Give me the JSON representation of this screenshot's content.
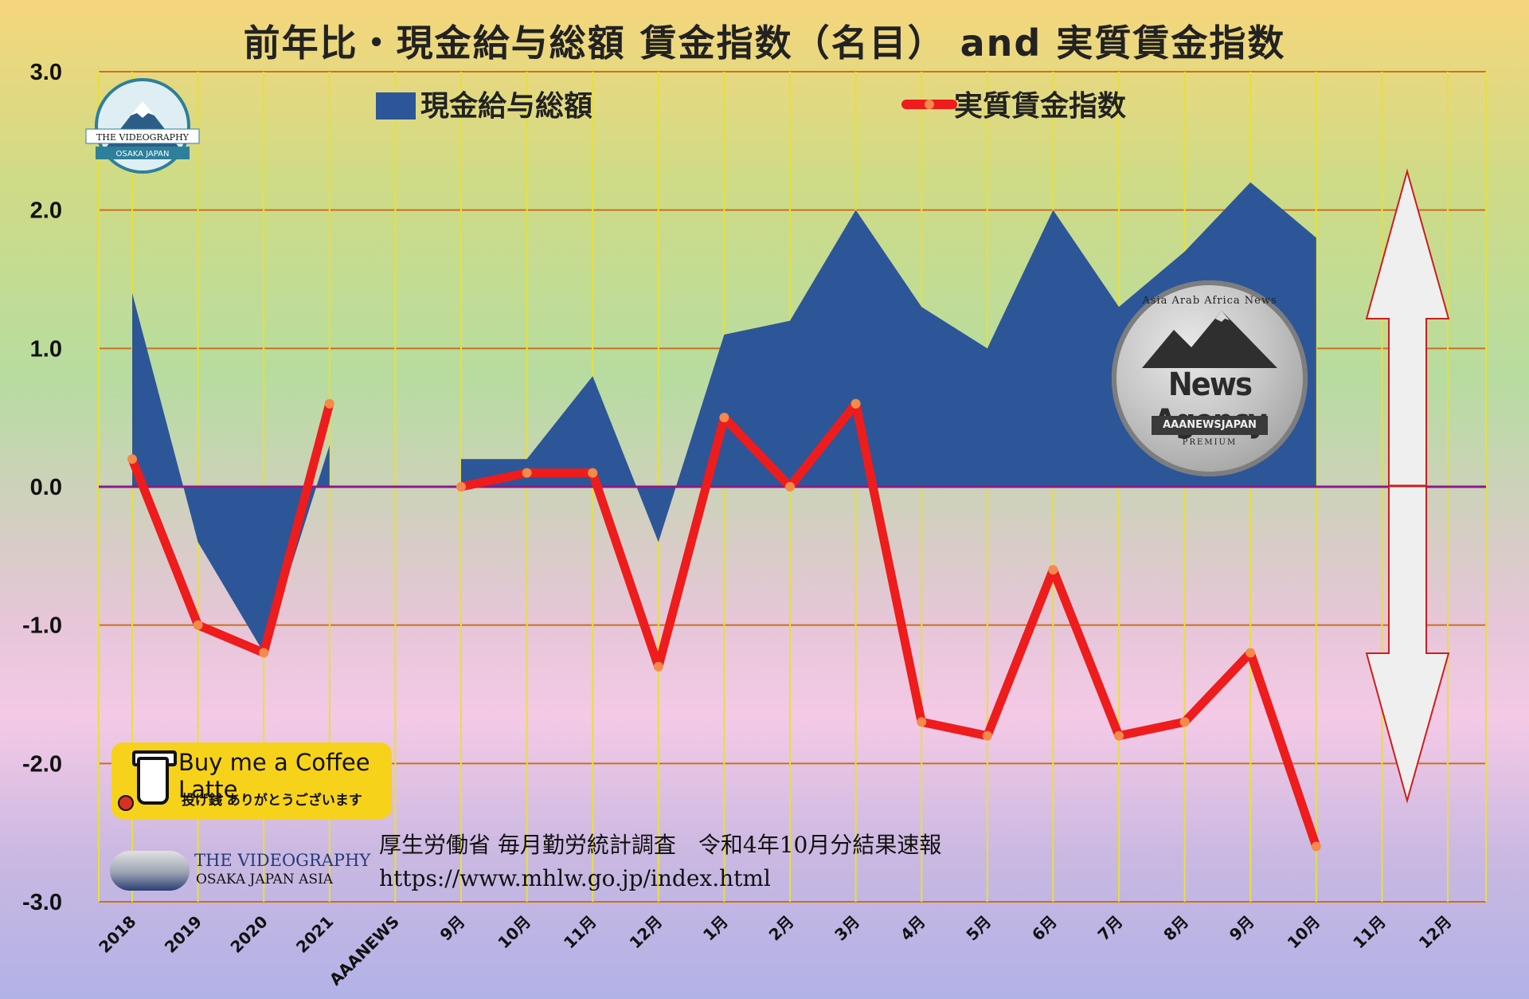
{
  "title": "前年比・現金給与総額 賃金指数（名目） and 実質賃金指数",
  "chart_data": {
    "type": "area",
    "y_ticks": [
      "3.0",
      "2.0",
      "1.0",
      "0.0",
      "-1.0",
      "-2.0",
      "-3.0"
    ],
    "ylim": [
      -3.0,
      3.0
    ],
    "categories": [
      "2018",
      "2019",
      "2020",
      "2021",
      "AAANEWS",
      "9月",
      "10月",
      "11月",
      "12月",
      "1月",
      "2月",
      "3月",
      "4月",
      "5月",
      "6月",
      "7月",
      "8月",
      "9月",
      "10月",
      "11月",
      "12月"
    ],
    "grid": true,
    "legend_position": "top",
    "series": [
      {
        "name": "現金給与総額",
        "type": "area",
        "color": "#2d5698",
        "values": [
          1.4,
          -0.4,
          -1.2,
          0.3,
          null,
          0.2,
          0.2,
          0.8,
          -0.4,
          1.1,
          1.2,
          2.0,
          1.3,
          1.0,
          2.0,
          1.3,
          1.7,
          2.2,
          1.8,
          null,
          null
        ]
      },
      {
        "name": "実質賃金指数",
        "type": "line",
        "color": "#ee1c1c",
        "values": [
          0.2,
          -1.0,
          -1.2,
          0.6,
          null,
          0.0,
          0.1,
          0.1,
          -1.3,
          0.5,
          0.0,
          0.6,
          -1.7,
          -1.8,
          -0.6,
          -1.8,
          -1.7,
          -1.2,
          -2.6,
          null,
          null
        ]
      }
    ]
  },
  "source": {
    "line1": "厚生労働省 毎月勤労統計調査　令和4年10月分結果速報",
    "line2": "https://www.mhlw.go.jp/index.html"
  },
  "coffee_badge": {
    "line1": "Buy me a Coffee Latte",
    "line2": "投げ銭 ありがとうございます"
  },
  "logo_top": {
    "text": "THE VIDEOGRAPHY",
    "sub": "OSAKA JAPAN"
  },
  "logo_bottom": {
    "line1": "THE VIDEOGRAPHY",
    "line2": "OSAKA JAPAN ASIA"
  },
  "news_badge": {
    "arc": "Asia Arab Africa News",
    "main": "News Agency",
    "ribbon": "AAANEWSJAPAN",
    "sub": "PREMIUM"
  }
}
